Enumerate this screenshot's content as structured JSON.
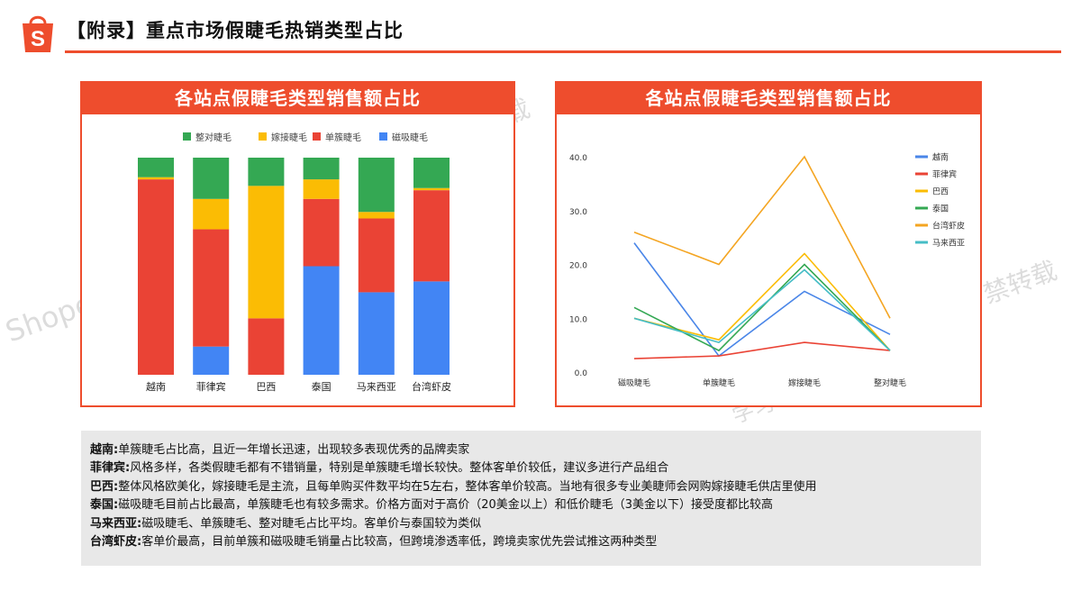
{
  "header": {
    "title": "【附录】重点市场假睫毛热销类型占比",
    "brand_color": "#ee4d2d",
    "logo_letter": "S"
  },
  "watermarks": [
    "Shopee",
    "禁转载",
    "禁转载",
    "学习中心"
  ],
  "left_chart": {
    "title": "各站点假睫毛类型销售额占比"
  },
  "right_chart": {
    "title": "各站点假睫毛类型销售额占比"
  },
  "chart_data": [
    {
      "type": "bar",
      "stacked": true,
      "percent": true,
      "title": "各站点假睫毛类型销售额占比",
      "categories": [
        "越南",
        "菲律宾",
        "巴西",
        "泰国",
        "马来西亚",
        "台湾虾皮"
      ],
      "series": [
        {
          "name": "磁吸睫毛",
          "color": "#4285f4",
          "values": [
            0,
            13,
            0,
            50,
            38,
            43
          ]
        },
        {
          "name": "单簇睫毛",
          "color": "#ea4335",
          "values": [
            90,
            54,
            26,
            31,
            34,
            42
          ]
        },
        {
          "name": "嫁接睫毛",
          "color": "#fbbc04",
          "values": [
            1,
            14,
            61,
            9,
            3,
            1
          ]
        },
        {
          "name": "整对睫毛",
          "color": "#34a853",
          "values": [
            9,
            19,
            13,
            10,
            25,
            14
          ]
        }
      ],
      "legend_order": [
        "整对睫毛",
        "嫁接睫毛",
        "单簇睫毛",
        "磁吸睫毛"
      ],
      "legend_position": "top",
      "ylim": [
        0,
        100
      ]
    },
    {
      "type": "line",
      "title": "各站点假睫毛类型销售额占比",
      "categories": [
        "磁吸睫毛",
        "单簇睫毛",
        "嫁接睫毛",
        "整对睫毛"
      ],
      "series": [
        {
          "name": "越南",
          "color": "#4a86e8",
          "values": [
            24,
            3,
            15,
            7
          ]
        },
        {
          "name": "菲律宾",
          "color": "#ea4335",
          "values": [
            2.5,
            3,
            5.5,
            4
          ]
        },
        {
          "name": "巴西",
          "color": "#fbbc04",
          "values": [
            10,
            6,
            22,
            4
          ]
        },
        {
          "name": "泰国",
          "color": "#34a853",
          "values": [
            12,
            4,
            20,
            4
          ]
        },
        {
          "name": "台湾虾皮",
          "color": "#f4a522",
          "values": [
            26,
            20,
            40,
            10
          ]
        },
        {
          "name": "马来西亚",
          "color": "#46bdc6",
          "values": [
            10,
            5.5,
            19,
            4
          ]
        }
      ],
      "yticks": [
        "0.0",
        "10.0",
        "20.0",
        "30.0",
        "40.0"
      ],
      "ylim": [
        0,
        40
      ],
      "grid": false,
      "legend_position": "right"
    }
  ],
  "notes": [
    {
      "key": "越南:",
      "text": "单簇睫毛占比高，且近一年增长迅速，出现较多表现优秀的品牌卖家"
    },
    {
      "key": "菲律宾:",
      "text": "风格多样，各类假睫毛都有不错销量，特别是单簇睫毛增长较快。整体客单价较低，建议多进行产品组合"
    },
    {
      "key": "巴西:",
      "text": "整体风格欧美化，嫁接睫毛是主流，且每单购买件数平均在5左右，整体客单价较高。当地有很多专业美睫师会网购嫁接睫毛供店里使用"
    },
    {
      "key": "泰国:",
      "text": "磁吸睫毛目前占比最高，单簇睫毛也有较多需求。价格方面对于高价（20美金以上）和低价睫毛（3美金以下）接受度都比较高"
    },
    {
      "key": "马来西亚:",
      "text": "磁吸睫毛、单簇睫毛、整对睫毛占比平均。客单价与泰国较为类似"
    },
    {
      "key": "台湾虾皮:",
      "text": "客单价最高，目前单簇和磁吸睫毛销量占比较高，但跨境渗透率低，跨境卖家优先尝试推这两种类型"
    }
  ]
}
